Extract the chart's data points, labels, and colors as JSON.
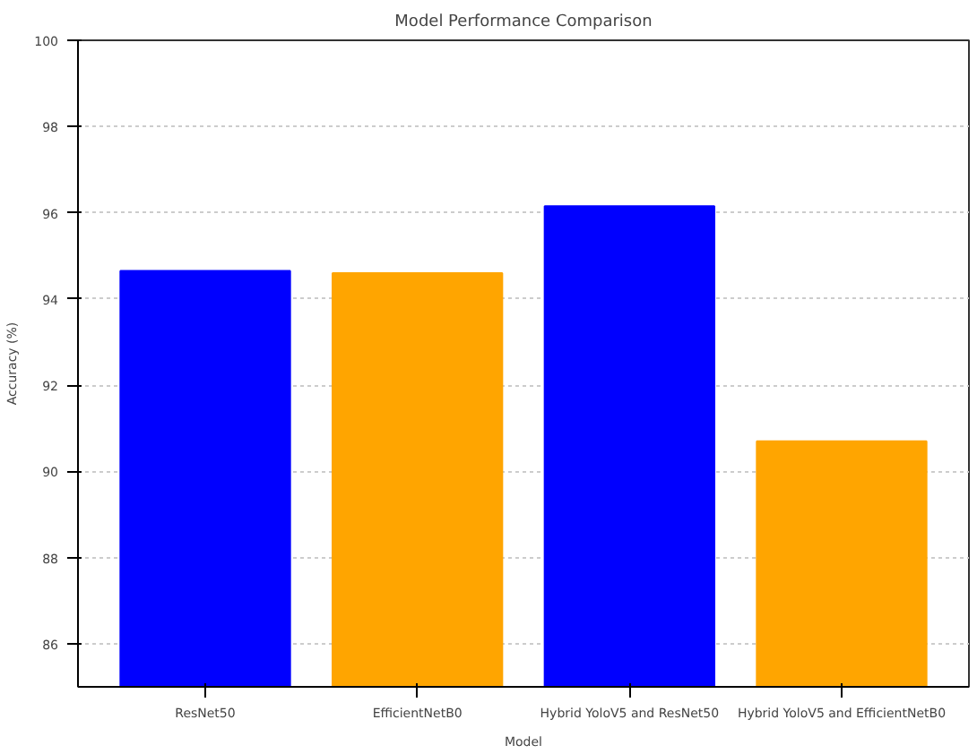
{
  "chart_data": {
    "type": "bar",
    "title": "Model Performance Comparison",
    "xlabel": "Model",
    "ylabel": "Accuracy (%)",
    "categories": [
      "ResNet50",
      "EfficientNetB0",
      "Hybrid YoloV5 and ResNet50",
      "Hybrid YoloV5 and EfficientNetB0"
    ],
    "values": [
      94.65,
      94.6,
      96.15,
      90.7
    ],
    "colors": [
      "#0000ff",
      "#ffa500",
      "#0000ff",
      "#ffa500"
    ],
    "ylim": [
      85,
      100
    ],
    "yticks": [
      86,
      88,
      90,
      92,
      94,
      96,
      98,
      100
    ],
    "grid": "y"
  }
}
